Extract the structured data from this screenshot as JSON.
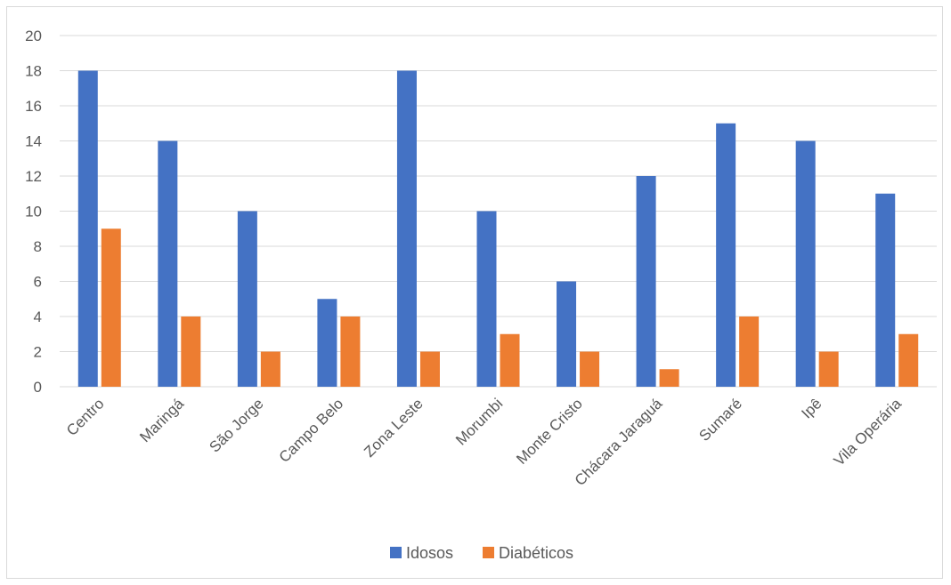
{
  "chart_data": {
    "type": "bar",
    "categories": [
      "Centro",
      "Maringá",
      "São Jorge",
      "Campo Belo",
      "Zona Leste",
      "Morumbi",
      "Monte Cristo",
      "Chácara Jaraguá",
      "Sumaré",
      "Ipê",
      "Vila Operária"
    ],
    "series": [
      {
        "name": "Idosos",
        "values": [
          18,
          14,
          10,
          5,
          18,
          10,
          6,
          12,
          15,
          14,
          11
        ],
        "color": "#4472C4"
      },
      {
        "name": "Diabéticos",
        "values": [
          9,
          4,
          2,
          4,
          2,
          3,
          2,
          1,
          4,
          2,
          3
        ],
        "color": "#ED7D31"
      }
    ],
    "ylim": [
      0,
      20
    ],
    "yticks": [
      "0",
      "2",
      "4",
      "6",
      "8",
      "10",
      "12",
      "14",
      "16",
      "18",
      "20"
    ],
    "grid": true,
    "legend_position": "bottom",
    "title": "",
    "xlabel": "",
    "ylabel": ""
  }
}
